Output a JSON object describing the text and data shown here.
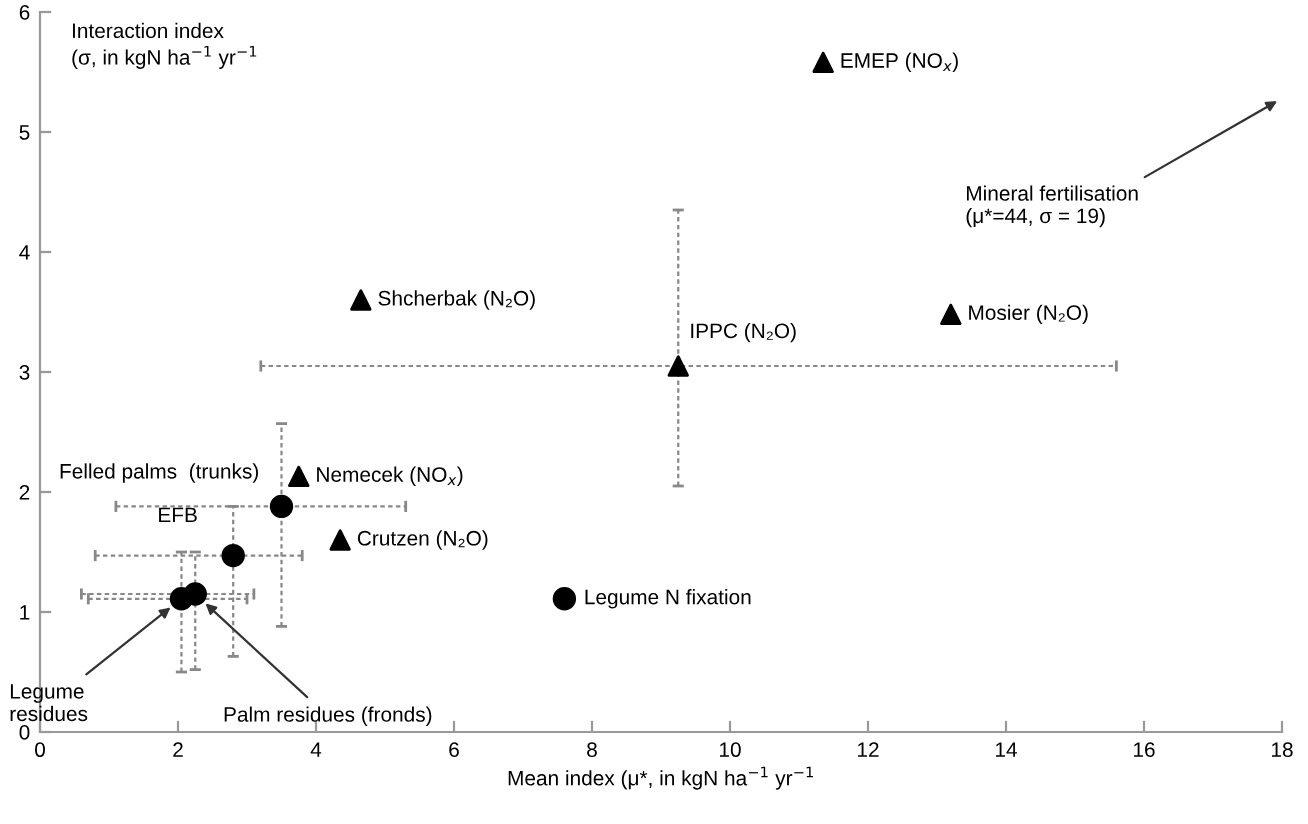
{
  "chart_data": {
    "type": "scatter",
    "xlabel": "Mean index (μ*, in kgN ha$^{−1}$ yr$^{−1}$",
    "ylabel": "Interaction index\n(σ, in kgN ha$^{−1}$ yr$^{−1}$",
    "xlim": [
      0,
      18
    ],
    "xticks": [
      0,
      2,
      4,
      6,
      8,
      10,
      12,
      14,
      16,
      18
    ],
    "ylim": [
      0,
      6
    ],
    "yticks": [
      0,
      1,
      2,
      3,
      4,
      5,
      6
    ],
    "grid": false,
    "series": [
      {
        "marker": "triangle",
        "color": "#000000",
        "x": [
          11.35,
          4.65,
          9.25,
          13.2,
          3.75,
          4.35
        ],
        "values": [
          5.58,
          3.6,
          3.05,
          3.48,
          2.13,
          1.6
        ],
        "xerrors": [
          null,
          null,
          [
            3.2,
            15.6
          ],
          null,
          null,
          null
        ],
        "errors": [
          null,
          null,
          [
            2.05,
            4.35
          ],
          null,
          null,
          null
        ]
      },
      {
        "marker": "circle",
        "color": "#000000",
        "x": [
          3.5,
          2.8,
          2.25,
          2.05,
          7.6
        ],
        "values": [
          1.88,
          1.47,
          1.15,
          1.11,
          1.11
        ],
        "xerrors": [
          [
            1.1,
            5.3
          ],
          [
            0.8,
            3.8
          ],
          [
            0.6,
            3.1
          ],
          [
            0.7,
            3.0
          ],
          null
        ],
        "errors": [
          [
            0.88,
            2.57
          ],
          [
            0.63,
            1.88
          ],
          [
            0.52,
            1.5
          ],
          [
            0.5,
            1.5
          ],
          null
        ]
      }
    ],
    "annotations": [
      {
        "text": "EMEP (NO$_{x}$)",
        "x": 11.35,
        "y": 5.58
      },
      {
        "text": "Shcherbak (N₂O)",
        "x": 4.65,
        "y": 3.6
      },
      {
        "text": "IPPC (N₂O)",
        "x": 9.25,
        "y": 3.05
      },
      {
        "text": "Mosier (N₂O)",
        "x": 13.2,
        "y": 3.48
      },
      {
        "text": "Nemecek (NO$_{x}$)",
        "x": 3.75,
        "y": 2.13
      },
      {
        "text": "Crutzen (N₂O)",
        "x": 4.35,
        "y": 1.6
      },
      {
        "text": "Felled palms  (trunks)",
        "x": 3.5,
        "y": 1.88
      },
      {
        "text": "EFB",
        "x": 2.8,
        "y": 1.47
      },
      {
        "text": "Legume\nresidues",
        "x": 2.05,
        "y": 1.11
      },
      {
        "text": "Palm residues (fronds)",
        "x": 2.25,
        "y": 1.15
      },
      {
        "text": "Legume N fixation",
        "x": 7.6,
        "y": 1.11
      },
      "Mineral fertilisation\n(μ*=44, σ = 19)"
    ]
  }
}
